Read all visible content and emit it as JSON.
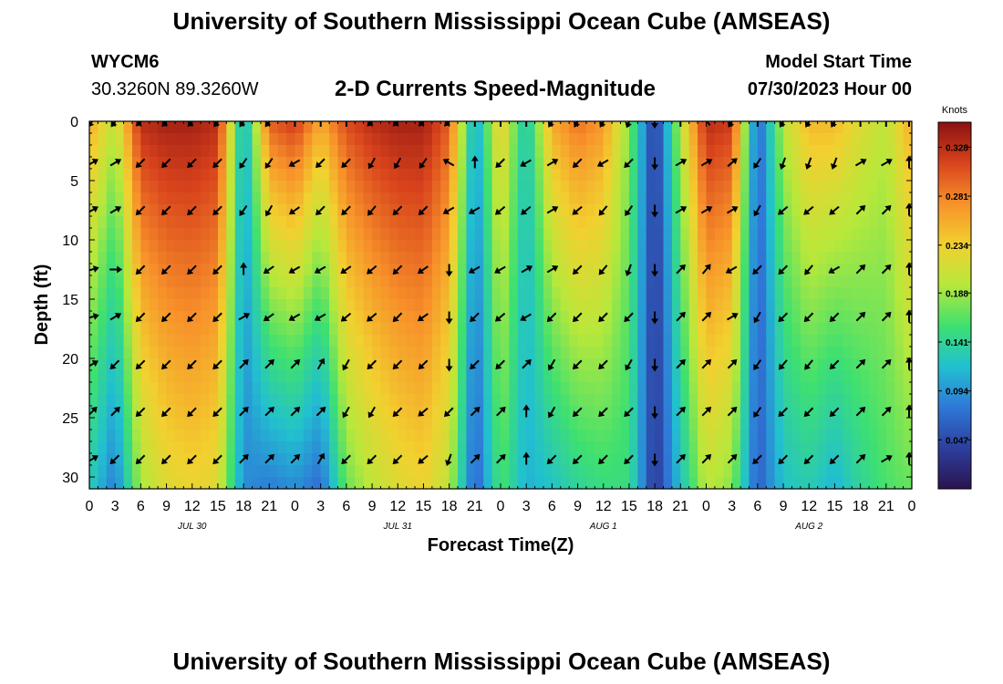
{
  "header": {
    "title": "University of Southern Mississippi Ocean Cube (AMSEAS)",
    "station": "WYCM6",
    "coords": "30.3260N  89.3260W",
    "plot_title": "2-D Currents Speed-Magnitude",
    "model_label": "Model Start Time",
    "model_time": "07/30/2023 Hour 00"
  },
  "footer": {
    "title": "University of Southern Mississippi Ocean Cube (AMSEAS)"
  },
  "colors": {
    "background": "#ffffff",
    "ramp": [
      "#2a1450",
      "#2d3f9e",
      "#2f78d8",
      "#21c0d0",
      "#3ee070",
      "#b7e83b",
      "#f2d02f",
      "#f7912a",
      "#d8431c",
      "#8c1111"
    ]
  },
  "chart_data": {
    "type": "heatmap",
    "title": "2-D Currents Speed-Magnitude",
    "xlabel": "Forecast Time(Z)",
    "ylabel": "Depth (ft)",
    "x_ticks": [
      "0",
      "3",
      "6",
      "9",
      "12",
      "15",
      "18",
      "21",
      "0",
      "3",
      "6",
      "9",
      "12",
      "15",
      "18",
      "21",
      "0",
      "3",
      "6",
      "9",
      "12",
      "15",
      "18",
      "21",
      "0",
      "3",
      "6",
      "9",
      "12",
      "15",
      "18",
      "21",
      "0"
    ],
    "date_labels": [
      {
        "label": "JUL 30",
        "hour": 12
      },
      {
        "label": "JUL 31",
        "hour": 36
      },
      {
        "label": "AUG 1",
        "hour": 60
      },
      {
        "label": "AUG 2",
        "hour": 84
      }
    ],
    "x_range_hours": [
      0,
      96
    ],
    "y_ticks": [
      0,
      5,
      10,
      15,
      20,
      25,
      30
    ],
    "y_range_ft": [
      0,
      31
    ],
    "colorbar": {
      "unit": "Knots",
      "ticks": [
        0.328,
        0.281,
        0.234,
        0.188,
        0.141,
        0.094,
        0.047
      ],
      "range": [
        0.0,
        0.352
      ]
    },
    "depth_rows_ft": [
      0,
      3.5,
      7.5,
      12.5,
      16.5,
      20.5,
      24.5,
      28.5
    ],
    "speed_profiles": {
      "hours": [
        0,
        3,
        6,
        9,
        12,
        15,
        18,
        21,
        24,
        27,
        30,
        33,
        36,
        39,
        42,
        45,
        48,
        51,
        54,
        57,
        60,
        63,
        66,
        69,
        72,
        75,
        78,
        81,
        84,
        87,
        90,
        93,
        96
      ],
      "surface_knots": [
        0.26,
        0.2,
        0.33,
        0.34,
        0.34,
        0.33,
        0.1,
        0.3,
        0.32,
        0.26,
        0.31,
        0.33,
        0.34,
        0.34,
        0.3,
        0.1,
        0.24,
        0.12,
        0.26,
        0.29,
        0.27,
        0.18,
        0.03,
        0.2,
        0.33,
        0.32,
        0.06,
        0.2,
        0.25,
        0.25,
        0.22,
        0.2,
        0.26
      ],
      "bottom_knots": [
        0.13,
        0.08,
        0.19,
        0.22,
        0.23,
        0.22,
        0.09,
        0.08,
        0.09,
        0.07,
        0.17,
        0.2,
        0.22,
        0.23,
        0.2,
        0.06,
        0.16,
        0.11,
        0.12,
        0.14,
        0.15,
        0.15,
        0.03,
        0.12,
        0.2,
        0.18,
        0.06,
        0.12,
        0.13,
        0.11,
        0.14,
        0.16,
        0.17
      ]
    },
    "arrow_directions_deg": [
      [
        215,
        215,
        225,
        220,
        220,
        215,
        215,
        215,
        0,
        0,
        0,
        225,
        225,
        225,
        225,
        0,
        0,
        0,
        210,
        210,
        210,
        200,
        180,
        0,
        315,
        210,
        0,
        210,
        210,
        210,
        0,
        0,
        0
      ],
      [
        60,
        60,
        225,
        225,
        225,
        225,
        215,
        215,
        240,
        225,
        225,
        210,
        210,
        215,
        300,
        0,
        225,
        240,
        60,
        225,
        240,
        225,
        180,
        60,
        60,
        50,
        215,
        200,
        200,
        200,
        60,
        60,
        0
      ],
      [
        60,
        60,
        225,
        225,
        225,
        225,
        215,
        210,
        235,
        225,
        225,
        220,
        225,
        225,
        240,
        240,
        230,
        230,
        60,
        230,
        220,
        215,
        180,
        60,
        60,
        60,
        210,
        230,
        230,
        230,
        45,
        45,
        0
      ],
      [
        75,
        90,
        225,
        225,
        225,
        225,
        0,
        235,
        240,
        240,
        235,
        230,
        225,
        235,
        180,
        240,
        240,
        60,
        60,
        225,
        220,
        200,
        180,
        45,
        40,
        240,
        225,
        225,
        220,
        240,
        45,
        45,
        0
      ],
      [
        75,
        60,
        225,
        225,
        225,
        225,
        60,
        235,
        240,
        240,
        230,
        230,
        225,
        235,
        180,
        225,
        230,
        240,
        225,
        225,
        225,
        225,
        180,
        45,
        45,
        60,
        210,
        225,
        225,
        225,
        45,
        45,
        0
      ],
      [
        60,
        225,
        225,
        225,
        225,
        225,
        45,
        45,
        45,
        30,
        210,
        225,
        225,
        225,
        180,
        225,
        225,
        45,
        210,
        225,
        225,
        210,
        180,
        45,
        45,
        45,
        215,
        220,
        220,
        225,
        45,
        45,
        0
      ],
      [
        45,
        45,
        225,
        225,
        225,
        225,
        45,
        45,
        45,
        45,
        210,
        210,
        225,
        230,
        225,
        45,
        45,
        0,
        210,
        225,
        225,
        225,
        180,
        45,
        45,
        45,
        215,
        225,
        225,
        225,
        45,
        45,
        0
      ],
      [
        60,
        225,
        225,
        225,
        225,
        225,
        45,
        45,
        45,
        30,
        225,
        225,
        225,
        230,
        200,
        45,
        45,
        0,
        225,
        225,
        225,
        225,
        180,
        45,
        45,
        45,
        225,
        225,
        225,
        225,
        45,
        60,
        0
      ]
    ]
  }
}
